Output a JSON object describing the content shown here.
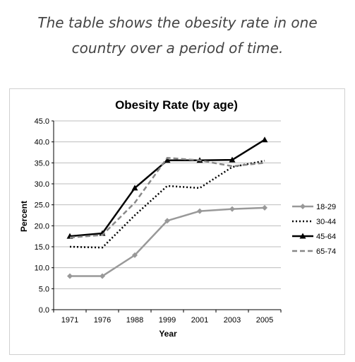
{
  "caption": {
    "line1": "The table shows the obesity rate in one",
    "line2": "country over a period of time."
  },
  "chart_data": {
    "type": "line",
    "title": "Obesity Rate (by age)",
    "xlabel": "Year",
    "ylabel": "Percent",
    "categories": [
      "1971",
      "1976",
      "1988",
      "1999",
      "2001",
      "2003",
      "2005"
    ],
    "ylim": [
      0,
      45
    ],
    "yticks": [
      "0.0",
      "5.0",
      "10.0",
      "15.0",
      "20.0",
      "25.0",
      "30.0",
      "35.0",
      "40.0",
      "45.0"
    ],
    "grid": true,
    "legend_position": "right",
    "series": [
      {
        "name": "18-29",
        "values": [
          8.0,
          8.0,
          13.0,
          21.2,
          23.5,
          24.0,
          24.3
        ],
        "color": "#999999",
        "style": "solid-diamond"
      },
      {
        "name": "30-44",
        "values": [
          15.0,
          14.8,
          22.5,
          29.5,
          29.0,
          34.0,
          35.5
        ],
        "color": "#000000",
        "style": "dotted"
      },
      {
        "name": "45-64",
        "values": [
          17.5,
          18.2,
          29.0,
          35.6,
          35.6,
          35.7,
          40.5
        ],
        "color": "#000000",
        "style": "solid-triangle"
      },
      {
        "name": "65-74",
        "values": [
          17.2,
          17.8,
          25.5,
          36.2,
          35.6,
          34.2,
          35.0
        ],
        "color": "#888888",
        "style": "dashed"
      }
    ]
  }
}
